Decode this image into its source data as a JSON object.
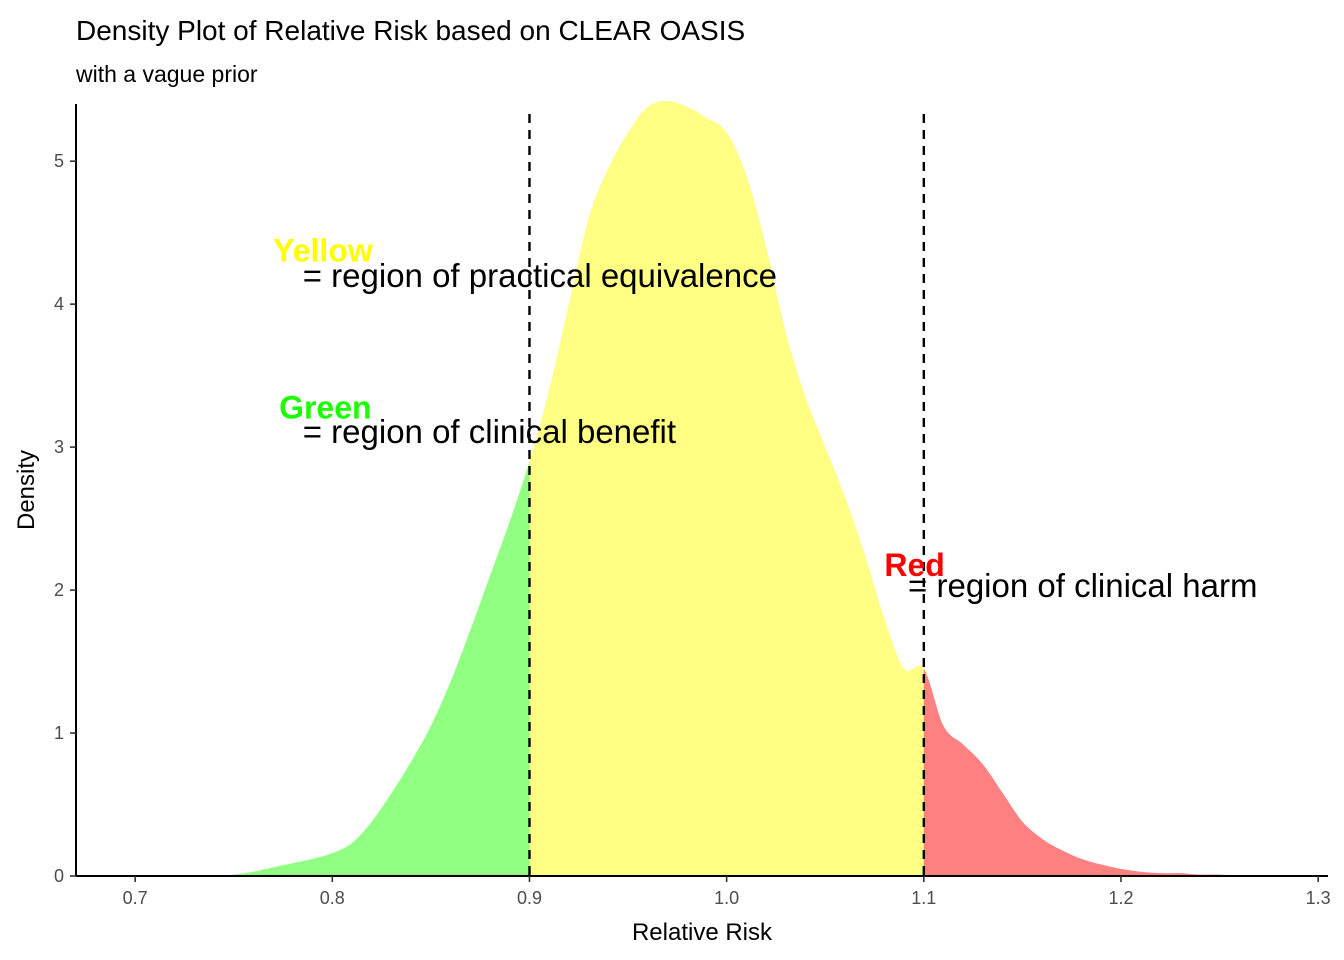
{
  "chart_data": {
    "type": "area",
    "title": "Density Plot of Relative Risk based on CLEAR OASIS",
    "subtitle": "with a vague prior",
    "xlabel": "Relative Risk",
    "ylabel": "Density",
    "xlim": [
      0.67,
      1.305
    ],
    "ylim": [
      0,
      5.4
    ],
    "x_ticks": [
      0.7,
      0.8,
      0.9,
      1.0,
      1.1,
      1.2,
      1.3
    ],
    "x_tick_labels": [
      "0.7",
      "0.8",
      "0.9",
      "1.0",
      "1.1",
      "1.2",
      "1.3"
    ],
    "y_ticks": [
      0,
      1,
      2,
      3,
      4,
      5
    ],
    "y_tick_labels": [
      "0",
      "1",
      "2",
      "3",
      "4",
      "5"
    ],
    "grid": false,
    "vlines": [
      0.9,
      1.1
    ],
    "regions": [
      {
        "from": 0.67,
        "to": 0.9,
        "color": "#90ff82"
      },
      {
        "from": 0.9,
        "to": 1.1,
        "color": "#ffff84"
      },
      {
        "from": 1.1,
        "to": 1.305,
        "color": "#ff8080"
      }
    ],
    "density": {
      "x": [
        0.7,
        0.72,
        0.74,
        0.75,
        0.76,
        0.77,
        0.78,
        0.79,
        0.8,
        0.81,
        0.82,
        0.83,
        0.84,
        0.85,
        0.86,
        0.87,
        0.88,
        0.89,
        0.9,
        0.91,
        0.92,
        0.93,
        0.94,
        0.95,
        0.96,
        0.97,
        0.98,
        0.99,
        1.0,
        1.01,
        1.02,
        1.03,
        1.04,
        1.05,
        1.06,
        1.07,
        1.08,
        1.09,
        1.1,
        1.11,
        1.12,
        1.13,
        1.14,
        1.15,
        1.16,
        1.17,
        1.18,
        1.19,
        1.2,
        1.21,
        1.22,
        1.23,
        1.24,
        1.25,
        1.26,
        1.27,
        1.28
      ],
      "y": [
        0.0,
        0.0,
        0.0,
        0.01,
        0.03,
        0.06,
        0.09,
        0.12,
        0.16,
        0.23,
        0.38,
        0.58,
        0.8,
        1.05,
        1.36,
        1.72,
        2.1,
        2.48,
        2.9,
        3.4,
        4.0,
        4.6,
        4.95,
        5.2,
        5.38,
        5.42,
        5.38,
        5.3,
        5.2,
        4.9,
        4.4,
        3.8,
        3.35,
        3.0,
        2.65,
        2.25,
        1.8,
        1.45,
        1.45,
        1.05,
        0.92,
        0.78,
        0.58,
        0.38,
        0.26,
        0.18,
        0.12,
        0.08,
        0.05,
        0.03,
        0.02,
        0.02,
        0.01,
        0.01,
        0.005,
        0.002,
        0.0
      ]
    },
    "annotations": [
      {
        "label": "Yellow",
        "label_color": "#ffff00",
        "text": "= region of practical equivalence",
        "x": 0.77,
        "y": 4.3,
        "text_x": 0.785,
        "text_y": 4.12
      },
      {
        "label": "Green",
        "label_color": "#1cff00",
        "text": "= region of clinical benefit",
        "x": 0.773,
        "y": 3.2,
        "text_x": 0.785,
        "text_y": 3.03
      },
      {
        "label": "Red",
        "label_color": "#ff0000",
        "text": "= region of clinical harm",
        "x": 1.08,
        "y": 2.1,
        "text_x": 1.092,
        "text_y": 1.95
      }
    ]
  }
}
